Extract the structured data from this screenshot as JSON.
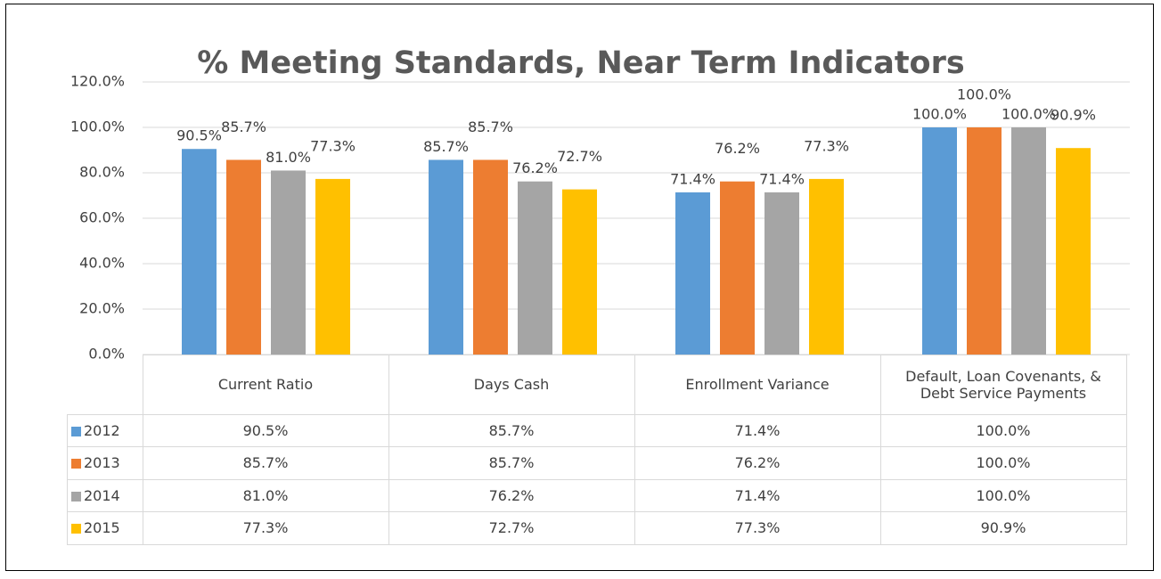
{
  "chart_data": {
    "type": "bar",
    "title": "% Meeting Standards, Near Term Indicators",
    "categories": [
      "Current Ratio",
      "Days Cash",
      "Enrollment Variance",
      "Default, Loan Covenants, & Debt Service Payments"
    ],
    "series": [
      {
        "name": "2012",
        "color": "#5b9bd5",
        "values": [
          90.5,
          85.7,
          71.4,
          100.0
        ],
        "value_labels": [
          "90.5%",
          "85.7%",
          "71.4%",
          "100.0%"
        ]
      },
      {
        "name": "2013",
        "color": "#ed7d31",
        "values": [
          85.7,
          85.7,
          76.2,
          100.0
        ],
        "value_labels": [
          "85.7%",
          "85.7%",
          "76.2%",
          "100.0%"
        ]
      },
      {
        "name": "2014",
        "color": "#a5a5a5",
        "values": [
          81.0,
          76.2,
          71.4,
          100.0
        ],
        "value_labels": [
          "81.0%",
          "76.2%",
          "71.4%",
          "100.0%"
        ]
      },
      {
        "name": "2015",
        "color": "#ffc000",
        "values": [
          77.3,
          72.7,
          77.3,
          90.9
        ],
        "value_labels": [
          "77.3%",
          "72.7%",
          "77.3%",
          "90.9%"
        ]
      }
    ],
    "ylim": [
      0,
      120
    ],
    "yticks": [
      {
        "value": 0,
        "label": "0.0%"
      },
      {
        "value": 20,
        "label": "20.0%"
      },
      {
        "value": 40,
        "label": "40.0%"
      },
      {
        "value": 60,
        "label": "60.0%"
      },
      {
        "value": 80,
        "label": "80.0%"
      },
      {
        "value": 100,
        "label": "100.0%"
      },
      {
        "value": 120,
        "label": "120.0%"
      }
    ],
    "grid": true,
    "data_table": true
  }
}
